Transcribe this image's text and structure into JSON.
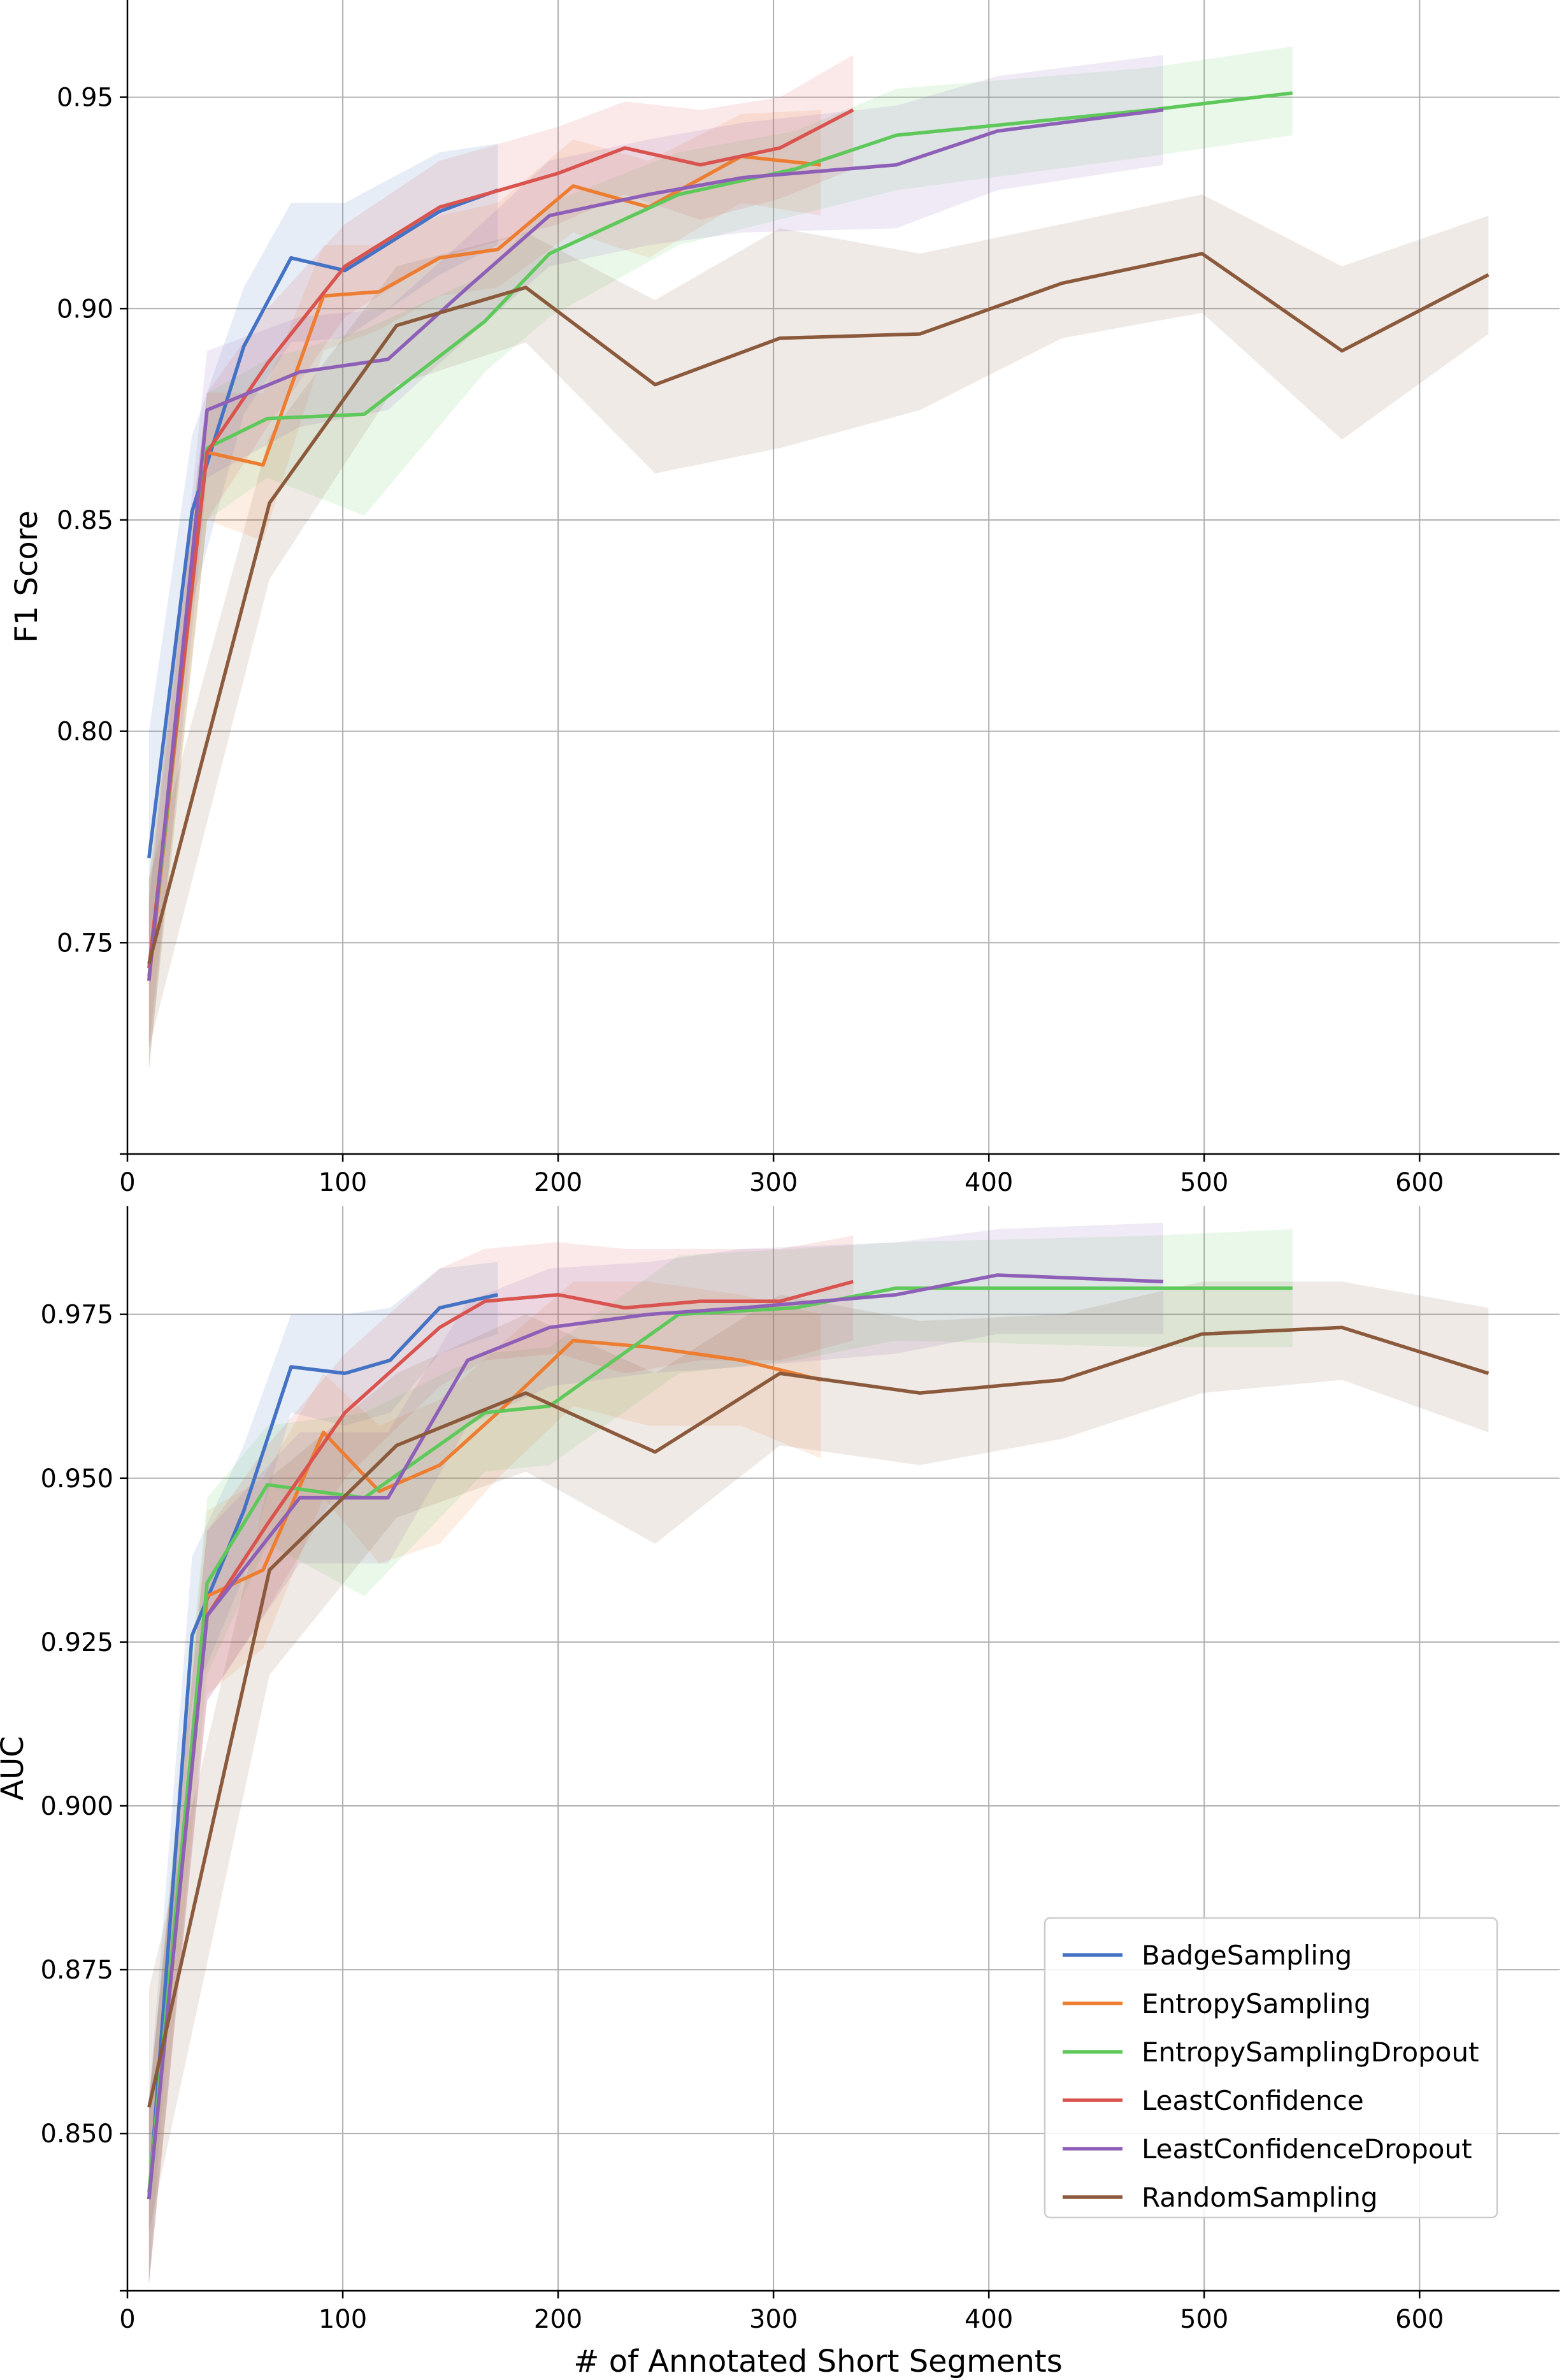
{
  "x_axis_label": "# of Annotated Short Segments",
  "colors": {
    "BadgeSampling": "#4472c4",
    "EntropySampling": "#ed7d31",
    "EntropySamplingDropout": "#5ec95a",
    "LeastConfidence": "#d9534f",
    "LeastConfidenceDropout": "#8e5fb7",
    "RandomSampling": "#8b5a3c",
    "grid": "#b0b0b0"
  },
  "legend_entries": [
    "BadgeSampling",
    "EntropySampling",
    "EntropySamplingDropout",
    "LeastConfidence",
    "LeastConfidenceDropout",
    "RandomSampling"
  ],
  "chart_data": [
    {
      "type": "line",
      "title": "",
      "xlabel": "",
      "ylabel": "F1 Score",
      "xlim": [
        0,
        665
      ],
      "ylim": [
        0.7,
        0.973
      ],
      "xticks": [
        0,
        100,
        200,
        300,
        400,
        500,
        600
      ],
      "yticks": [
        0.75,
        0.8,
        0.85,
        0.9,
        0.95
      ],
      "ytick_labels": [
        "0.75",
        "0.80",
        "0.85",
        "0.90",
        "0.95"
      ],
      "grid": true,
      "legend": "none",
      "series": [
        {
          "name": "BadgeSampling",
          "x": [
            10,
            30,
            54,
            76,
            101,
            145,
            172
          ],
          "y": [
            0.77,
            0.852,
            0.891,
            0.912,
            0.909,
            0.923,
            0.928
          ],
          "lo": [
            0.75,
            0.83,
            0.875,
            0.892,
            0.893,
            0.908,
            0.915
          ],
          "hi": [
            0.8,
            0.87,
            0.905,
            0.925,
            0.925,
            0.937,
            0.939
          ]
        },
        {
          "name": "EntropySampling",
          "x": [
            10,
            37,
            63,
            91,
            117,
            145,
            172,
            207,
            242,
            285,
            322
          ],
          "y": [
            0.741,
            0.866,
            0.863,
            0.903,
            0.904,
            0.912,
            0.914,
            0.929,
            0.924,
            0.936,
            0.934
          ],
          "lo": [
            0.72,
            0.85,
            0.845,
            0.89,
            0.895,
            0.903,
            0.905,
            0.918,
            0.912,
            0.925,
            0.922
          ],
          "hi": [
            0.76,
            0.88,
            0.88,
            0.915,
            0.915,
            0.922,
            0.925,
            0.94,
            0.935,
            0.946,
            0.947
          ]
        },
        {
          "name": "EntropySamplingDropout",
          "x": [
            10,
            37,
            65,
            110,
            166,
            196,
            256,
            310,
            357,
            475,
            541
          ],
          "y": [
            0.742,
            0.867,
            0.874,
            0.875,
            0.897,
            0.913,
            0.927,
            0.933,
            0.941,
            0.947,
            0.951
          ],
          "lo": [
            0.72,
            0.85,
            0.86,
            0.851,
            0.885,
            0.898,
            0.915,
            0.922,
            0.928,
            0.936,
            0.941
          ],
          "hi": [
            0.765,
            0.88,
            0.888,
            0.895,
            0.908,
            0.925,
            0.937,
            0.942,
            0.952,
            0.957,
            0.962
          ]
        },
        {
          "name": "LeastConfidence",
          "x": [
            10,
            37,
            65,
            101,
            145,
            166,
            200,
            231,
            266,
            303,
            337
          ],
          "y": [
            0.744,
            0.866,
            0.887,
            0.91,
            0.924,
            0.927,
            0.932,
            0.938,
            0.934,
            0.938,
            0.947
          ],
          "lo": [
            0.725,
            0.85,
            0.872,
            0.898,
            0.912,
            0.915,
            0.92,
            0.927,
            0.921,
            0.926,
            0.933
          ],
          "hi": [
            0.765,
            0.88,
            0.9,
            0.92,
            0.935,
            0.938,
            0.943,
            0.949,
            0.947,
            0.95,
            0.96
          ]
        },
        {
          "name": "LeastConfidenceDropout",
          "x": [
            10,
            37,
            80,
            121,
            158,
            196,
            242,
            286,
            357,
            404,
            481
          ],
          "y": [
            0.741,
            0.876,
            0.885,
            0.888,
            0.905,
            0.922,
            0.927,
            0.931,
            0.934,
            0.942,
            0.947
          ],
          "lo": [
            0.72,
            0.86,
            0.872,
            0.876,
            0.893,
            0.91,
            0.915,
            0.918,
            0.919,
            0.928,
            0.934
          ],
          "hi": [
            0.76,
            0.89,
            0.898,
            0.9,
            0.917,
            0.935,
            0.94,
            0.944,
            0.948,
            0.955,
            0.96
          ]
        },
        {
          "name": "RandomSampling",
          "x": [
            10,
            66,
            125,
            185,
            245,
            303,
            368,
            434,
            499,
            564,
            632
          ],
          "y": [
            0.745,
            0.854,
            0.896,
            0.905,
            0.882,
            0.893,
            0.894,
            0.906,
            0.913,
            0.89,
            0.908
          ],
          "lo": [
            0.725,
            0.836,
            0.882,
            0.892,
            0.861,
            0.867,
            0.876,
            0.893,
            0.899,
            0.869,
            0.894
          ],
          "hi": [
            0.765,
            0.87,
            0.91,
            0.918,
            0.902,
            0.919,
            0.913,
            0.92,
            0.927,
            0.91,
            0.922
          ]
        }
      ]
    },
    {
      "type": "line",
      "title": "",
      "xlabel": "# of Annotated Short Segments",
      "ylabel": "AUC",
      "xlim": [
        0,
        665
      ],
      "ylim": [
        0.826,
        0.9915
      ],
      "xticks": [
        0,
        100,
        200,
        300,
        400,
        500,
        600
      ],
      "yticks": [
        0.85,
        0.875,
        0.9,
        0.925,
        0.95,
        0.975
      ],
      "ytick_labels": [
        "0.850",
        "0.875",
        "0.900",
        "0.925",
        "0.950",
        "0.975"
      ],
      "grid": true,
      "legend": "lower right",
      "series": [
        {
          "name": "BadgeSampling",
          "x": [
            10,
            30,
            54,
            76,
            101,
            122,
            145,
            172
          ],
          "y": [
            0.84,
            0.926,
            0.945,
            0.967,
            0.966,
            0.968,
            0.976,
            0.978
          ],
          "lo": [
            0.827,
            0.916,
            0.935,
            0.96,
            0.958,
            0.96,
            0.969,
            0.972
          ],
          "hi": [
            0.855,
            0.938,
            0.955,
            0.975,
            0.975,
            0.976,
            0.982,
            0.983
          ]
        },
        {
          "name": "EntropySampling",
          "x": [
            10,
            37,
            63,
            91,
            117,
            145,
            172,
            207,
            242,
            285,
            322
          ],
          "y": [
            0.84,
            0.932,
            0.936,
            0.957,
            0.948,
            0.952,
            0.96,
            0.971,
            0.97,
            0.968,
            0.965
          ],
          "lo": [
            0.827,
            0.917,
            0.924,
            0.947,
            0.937,
            0.94,
            0.95,
            0.961,
            0.958,
            0.958,
            0.953
          ],
          "hi": [
            0.855,
            0.945,
            0.95,
            0.966,
            0.958,
            0.962,
            0.97,
            0.98,
            0.98,
            0.978,
            0.975
          ]
        },
        {
          "name": "EntropySamplingDropout",
          "x": [
            10,
            37,
            65,
            110,
            166,
            196,
            256,
            310,
            357,
            475,
            541
          ],
          "y": [
            0.841,
            0.934,
            0.949,
            0.947,
            0.96,
            0.961,
            0.975,
            0.976,
            0.979,
            0.979,
            0.979
          ],
          "lo": [
            0.827,
            0.92,
            0.94,
            0.932,
            0.951,
            0.952,
            0.966,
            0.968,
            0.971,
            0.97,
            0.97
          ],
          "hi": [
            0.855,
            0.947,
            0.958,
            0.96,
            0.969,
            0.97,
            0.984,
            0.985,
            0.986,
            0.987,
            0.988
          ]
        },
        {
          "name": "LeastConfidence",
          "x": [
            10,
            37,
            65,
            101,
            145,
            166,
            200,
            231,
            266,
            303,
            337
          ],
          "y": [
            0.84,
            0.929,
            0.943,
            0.96,
            0.973,
            0.977,
            0.978,
            0.976,
            0.977,
            0.977,
            0.98
          ],
          "lo": [
            0.827,
            0.916,
            0.93,
            0.95,
            0.964,
            0.968,
            0.969,
            0.966,
            0.968,
            0.968,
            0.971
          ],
          "hi": [
            0.855,
            0.942,
            0.955,
            0.969,
            0.982,
            0.985,
            0.986,
            0.985,
            0.985,
            0.985,
            0.987
          ]
        },
        {
          "name": "LeastConfidenceDropout",
          "x": [
            10,
            37,
            80,
            121,
            158,
            196,
            242,
            286,
            357,
            404,
            481
          ],
          "y": [
            0.84,
            0.929,
            0.947,
            0.947,
            0.968,
            0.973,
            0.975,
            0.976,
            0.978,
            0.981,
            0.98
          ],
          "lo": [
            0.827,
            0.916,
            0.937,
            0.937,
            0.958,
            0.964,
            0.966,
            0.967,
            0.969,
            0.972,
            0.972
          ],
          "hi": [
            0.855,
            0.942,
            0.957,
            0.957,
            0.977,
            0.982,
            0.983,
            0.985,
            0.986,
            0.988,
            0.989
          ]
        },
        {
          "name": "RandomSampling",
          "x": [
            10,
            66,
            125,
            185,
            245,
            303,
            368,
            434,
            499,
            564,
            632
          ],
          "y": [
            0.854,
            0.936,
            0.955,
            0.963,
            0.954,
            0.966,
            0.963,
            0.965,
            0.972,
            0.973,
            0.966
          ],
          "lo": [
            0.835,
            0.92,
            0.944,
            0.951,
            0.94,
            0.955,
            0.952,
            0.956,
            0.963,
            0.965,
            0.957
          ],
          "hi": [
            0.872,
            0.95,
            0.966,
            0.975,
            0.966,
            0.978,
            0.974,
            0.975,
            0.98,
            0.98,
            0.976
          ]
        }
      ]
    }
  ]
}
